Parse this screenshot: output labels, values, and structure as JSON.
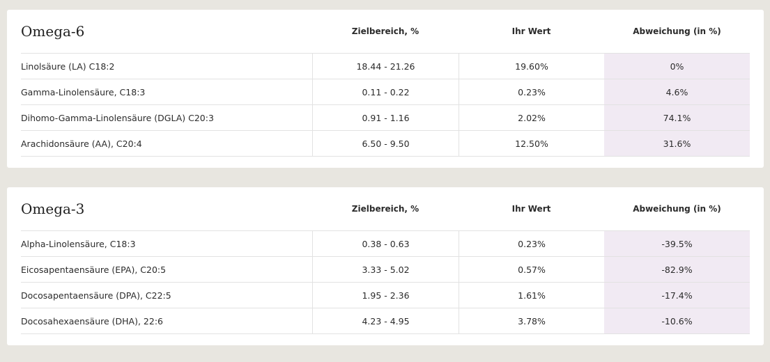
{
  "omega6": {
    "title": "Omega-6",
    "headers": {
      "range": "Zielbereich, %",
      "value": "Ihr Wert",
      "deviation": "Abweichung (in %)"
    },
    "rows": [
      {
        "name": "Linolsäure (LA) C18:2",
        "range": "18.44 - 21.26",
        "value": "19.60%",
        "deviation": "0%"
      },
      {
        "name": "Gamma-Linolensäure, C18:3",
        "range": "0.11 - 0.22",
        "value": "0.23%",
        "deviation": "4.6%"
      },
      {
        "name": "Dihomo-Gamma-Linolensäure (DGLA) C20:3",
        "range": "0.91 - 1.16",
        "value": "2.02%",
        "deviation": "74.1%"
      },
      {
        "name": "Arachidonsäure (AA), C20:4",
        "range": "6.50 - 9.50",
        "value": "12.50%",
        "deviation": "31.6%"
      }
    ]
  },
  "omega3": {
    "title": "Omega-3",
    "headers": {
      "range": "Zielbereich, %",
      "value": "Ihr Wert",
      "deviation": "Abweichung (in %)"
    },
    "rows": [
      {
        "name": "Alpha-Linolensäure, C18:3",
        "range": "0.38 - 0.63",
        "value": "0.23%",
        "deviation": "-39.5%"
      },
      {
        "name": "Eicosapentaensäure (EPA), C20:5",
        "range": "3.33 - 5.02",
        "value": "0.57%",
        "deviation": "-82.9%"
      },
      {
        "name": "Docosapentaensäure (DPA), C22:5",
        "range": "1.95 - 2.36",
        "value": "1.61%",
        "deviation": "-17.4%"
      },
      {
        "name": "Docosahexaensäure (DHA), 22:6",
        "range": "4.23 - 4.95",
        "value": "3.78%",
        "deviation": "-10.6%"
      }
    ]
  },
  "colors": {
    "page_background": "#e8e6e0",
    "card_background": "#ffffff",
    "deviation_column_background": "#f1eaf3",
    "divider": "#e2e2e2"
  }
}
